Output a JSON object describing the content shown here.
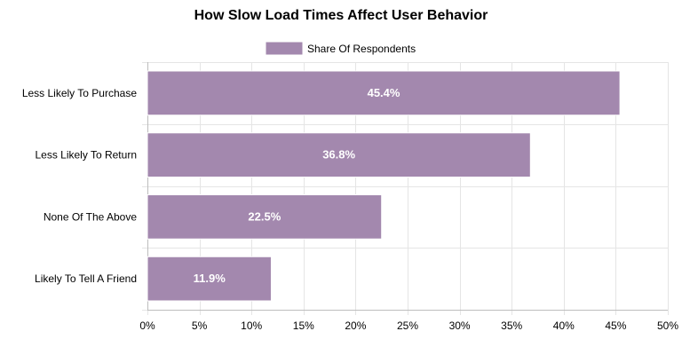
{
  "chart_data": {
    "type": "bar",
    "orientation": "horizontal",
    "title": "How Slow Load Times Affect User Behavior",
    "xlabel": "",
    "ylabel": "",
    "categories": [
      "Less Likely To Purchase",
      "Less Likely To Return",
      "None Of The Above",
      "Likely To Tell A Friend"
    ],
    "series": [
      {
        "name": "Share Of Respondents",
        "values": [
          45.4,
          36.8,
          22.5,
          11.9
        ],
        "color": "#a388ae"
      }
    ],
    "data_labels": [
      "45.4%",
      "36.8%",
      "22.5%",
      "11.9%"
    ],
    "xlim": [
      0,
      50
    ],
    "x_ticks": [
      0,
      5,
      10,
      15,
      20,
      25,
      30,
      35,
      40,
      45,
      50
    ],
    "x_tick_labels": [
      "0%",
      "5%",
      "10%",
      "15%",
      "20%",
      "25%",
      "30%",
      "35%",
      "40%",
      "45%",
      "50%"
    ],
    "legend_position": "top-center",
    "grid": true,
    "colors": {
      "bar": "#a388ae",
      "bar_border": "#ffffff",
      "grid": "#e5e5e5",
      "axis": "#bdbdbd",
      "data_label": "#ffffff"
    }
  }
}
